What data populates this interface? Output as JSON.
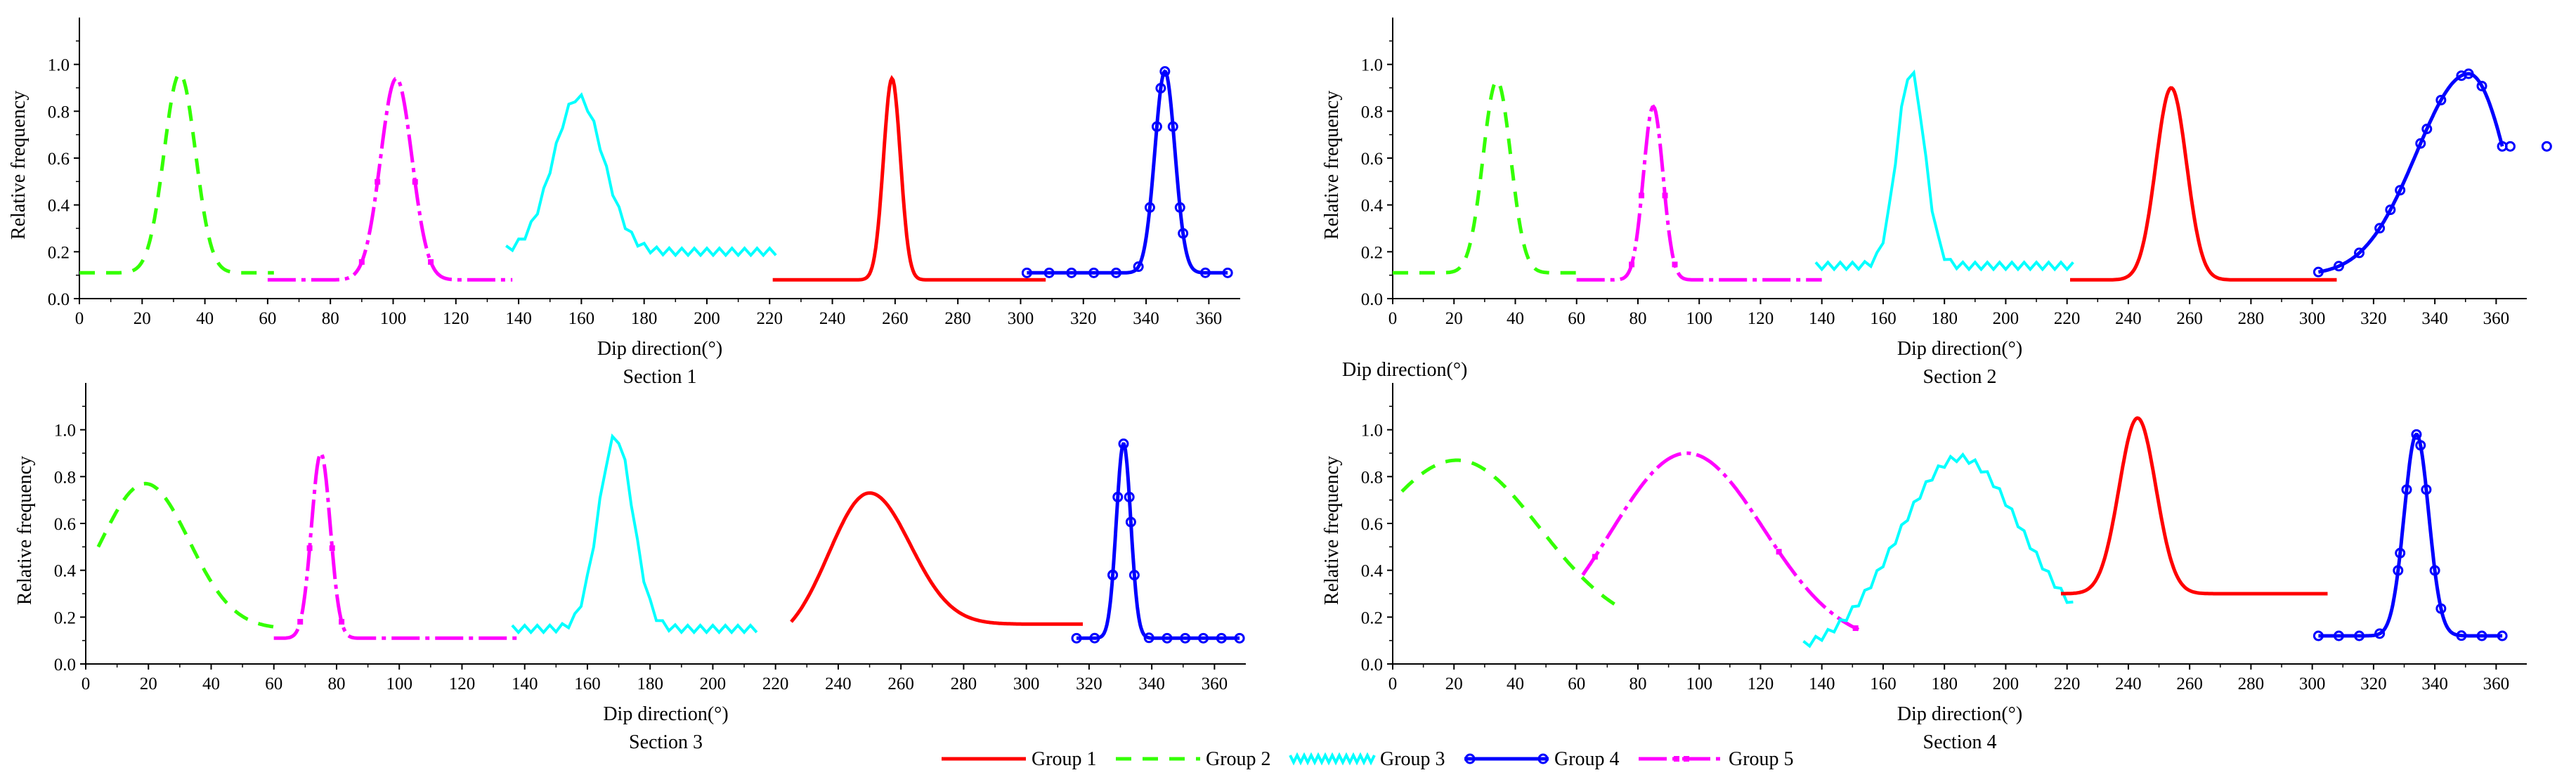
{
  "colors": {
    "group1": "#ff0000",
    "group2": "#33ff00",
    "group3": "#00ffff",
    "group4": "#0000ff",
    "group5": "#ff00ff",
    "axis": "#000000"
  },
  "legend": {
    "items": [
      {
        "key": "group1",
        "label": "Group 1",
        "style": "solid"
      },
      {
        "key": "group2",
        "label": "Group 2",
        "style": "dashed"
      },
      {
        "key": "group3",
        "label": "Group 3",
        "style": "zigzag"
      },
      {
        "key": "group4",
        "label": "Group 4",
        "style": "circle-marker"
      },
      {
        "key": "group5",
        "label": "Group 5",
        "style": "dash-square"
      }
    ]
  },
  "stray_label": "Dip direction(°)",
  "chart_data": [
    {
      "type": "line",
      "title": "Section 1",
      "xlabel": "Dip direction(°)",
      "ylabel": "Relative frequency",
      "xlim": [
        0,
        370
      ],
      "ylim": [
        0,
        1.2
      ],
      "xticks": [
        0,
        20,
        40,
        60,
        80,
        100,
        120,
        140,
        160,
        180,
        200,
        220,
        240,
        260,
        280,
        300,
        320,
        340,
        360
      ],
      "yticks": [
        0,
        0.2,
        0.4,
        0.6,
        0.8,
        1.0
      ],
      "ytick_labels": [
        "0.0",
        "0.2",
        "0.4",
        "0.6",
        "0.8",
        "1.0"
      ],
      "series": [
        {
          "name": "Group 2",
          "key": "group2",
          "x_range": [
            0,
            62
          ],
          "baseline": 0.11,
          "peak": 0.96,
          "center": 32,
          "sigma": 5
        },
        {
          "name": "Group 5",
          "key": "group5",
          "x_range": [
            60,
            138
          ],
          "baseline": 0.08,
          "peak": 0.94,
          "center": 101,
          "sigma": 5
        },
        {
          "name": "Group 3",
          "key": "group3",
          "x_range": [
            136,
            222
          ],
          "baseline": 0.2,
          "peak": 0.86,
          "center": 159,
          "sigma": 8
        },
        {
          "name": "Group 1",
          "key": "group1",
          "x_range": [
            221,
            308
          ],
          "baseline": 0.08,
          "peak": 0.94,
          "center": 259,
          "sigma": 2.7
        },
        {
          "name": "Group 4",
          "key": "group4",
          "x_range": [
            302,
            366
          ],
          "baseline": 0.11,
          "peak": 0.97,
          "center": 346,
          "sigma": 3.2
        }
      ]
    },
    {
      "type": "line",
      "title": "Section 2",
      "xlabel": "Dip direction(°)",
      "ylabel": "Relative frequency",
      "xlim": [
        0,
        370
      ],
      "ylim": [
        0,
        1.2
      ],
      "xticks": [
        0,
        20,
        40,
        60,
        80,
        100,
        120,
        140,
        160,
        180,
        200,
        220,
        240,
        260,
        280,
        300,
        320,
        340,
        360
      ],
      "yticks": [
        0,
        0.2,
        0.4,
        0.6,
        0.8,
        1.0
      ],
      "ytick_labels": [
        "0.0",
        "0.2",
        "0.4",
        "0.6",
        "0.8",
        "1.0"
      ],
      "series": [
        {
          "name": "Group 2",
          "key": "group2",
          "x_range": [
            0,
            62
          ],
          "baseline": 0.11,
          "peak": 0.93,
          "center": 34,
          "sigma": 4.5
        },
        {
          "name": "Group 5",
          "key": "group5",
          "x_range": [
            60,
            140
          ],
          "baseline": 0.08,
          "peak": 0.82,
          "center": 85,
          "sigma": 3.2
        },
        {
          "name": "Group 3",
          "key": "group3",
          "x_range": [
            138,
            222
          ],
          "baseline": 0.14,
          "peak": 0.97,
          "center": 169,
          "sigma": 4.5
        },
        {
          "name": "Group 1",
          "key": "group1",
          "x_range": [
            221,
            308
          ],
          "baseline": 0.08,
          "peak": 0.9,
          "center": 254,
          "sigma": 5
        },
        {
          "name": "Group 4",
          "key": "group4",
          "x_range": [
            302,
            362
          ],
          "baseline": 0.1,
          "peak": 0.96,
          "center": 351,
          "sigma": 17,
          "tail_end": 0.65
        }
      ]
    },
    {
      "type": "line",
      "title": "Section 3",
      "xlabel": "Dip direction(°)",
      "ylabel": "Relative frequency",
      "xlim": [
        0,
        370
      ],
      "ylim": [
        0,
        1.2
      ],
      "xticks": [
        0,
        20,
        40,
        60,
        80,
        100,
        120,
        140,
        160,
        180,
        200,
        220,
        240,
        260,
        280,
        300,
        320,
        340,
        360
      ],
      "yticks": [
        0,
        0.2,
        0.4,
        0.6,
        0.8,
        1.0
      ],
      "ytick_labels": [
        "0.0",
        "0.2",
        "0.4",
        "0.6",
        "0.8",
        "1.0"
      ],
      "series": [
        {
          "name": "Group 2",
          "key": "group2",
          "x_range": [
            4,
            60
          ],
          "baseline": 0.15,
          "peak": 0.77,
          "center": 19,
          "sigma": 14,
          "start_value": 0.5
        },
        {
          "name": "Group 5",
          "key": "group5",
          "x_range": [
            60,
            138
          ],
          "baseline": 0.11,
          "peak": 0.9,
          "center": 75,
          "sigma": 3
        },
        {
          "name": "Group 3",
          "key": "group3",
          "x_range": [
            136,
            215
          ],
          "baseline": 0.15,
          "peak": 0.97,
          "center": 169,
          "sigma": 5.5
        },
        {
          "name": "Group 1",
          "key": "group1",
          "x_range": [
            225,
            318
          ],
          "baseline": 0.17,
          "peak": 0.73,
          "center": 250,
          "sigma": 13,
          "start_value": 0.18
        },
        {
          "name": "Group 4",
          "key": "group4",
          "x_range": [
            316,
            368
          ],
          "baseline": 0.11,
          "peak": 0.94,
          "center": 331,
          "sigma": 2.3
        }
      ]
    },
    {
      "type": "line",
      "title": "Section 4",
      "xlabel": "Dip direction(°)",
      "ylabel": "Relative frequency",
      "xlim": [
        0,
        370
      ],
      "ylim": [
        0,
        1.2
      ],
      "xticks": [
        0,
        20,
        40,
        60,
        80,
        100,
        120,
        140,
        160,
        180,
        200,
        220,
        240,
        260,
        280,
        300,
        320,
        340,
        360
      ],
      "yticks": [
        0,
        0.2,
        0.4,
        0.6,
        0.8,
        1.0
      ],
      "ytick_labels": [
        "0.0",
        "0.2",
        "0.4",
        "0.6",
        "0.8",
        "1.0"
      ],
      "series": [
        {
          "name": "Group 2",
          "key": "group2",
          "x_range": [
            3,
            73
          ],
          "baseline": 0.2,
          "peak": 0.87,
          "center": 21,
          "sigma": 27,
          "end_value": 0.25
        },
        {
          "name": "Group 5",
          "key": "group5",
          "x_range": [
            62,
            152
          ],
          "baseline": 0.08,
          "peak": 0.9,
          "center": 96,
          "sigma": 25,
          "start_value": 0.38
        },
        {
          "name": "Group 3",
          "key": "group3",
          "x_range": [
            134,
            222
          ],
          "baseline": 0.05,
          "peak": 0.88,
          "center": 185,
          "sigma": 20,
          "end_value": 0.25
        },
        {
          "name": "Group 1",
          "key": "group1",
          "x_range": [
            218,
            305
          ],
          "baseline": 0.3,
          "peak": 1.05,
          "center": 243,
          "sigma": 6
        },
        {
          "name": "Group 4",
          "key": "group4",
          "x_range": [
            302,
            362
          ],
          "baseline": 0.12,
          "peak": 0.98,
          "center": 334,
          "sigma": 4
        }
      ]
    }
  ]
}
